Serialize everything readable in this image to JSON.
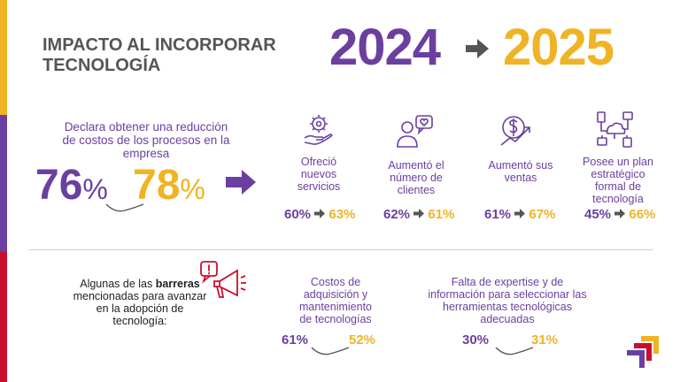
{
  "colors": {
    "purple": "#6b3fa0",
    "yellow": "#f0b323",
    "red": "#c8102e",
    "gray": "#555555"
  },
  "header": {
    "title_line1": "IMPACTO AL INCORPORAR",
    "title_line2": "TECNOLOGÍA",
    "year_from": "2024",
    "year_to": "2025"
  },
  "cost_reduction": {
    "text": "Declara obtener una reducción de costos de los procesos en la empresa",
    "value_2024": "76",
    "value_2025": "78",
    "unit": "%"
  },
  "impacts": [
    {
      "icon": "gear-hand-icon",
      "label": "Ofreció nuevos servicios",
      "from": "60%",
      "to": "63%"
    },
    {
      "icon": "person-heart-icon",
      "label": "Aumentó el número de clientes",
      "from": "62%",
      "to": "61%"
    },
    {
      "icon": "dollar-growth-icon",
      "label": "Aumentó sus ventas",
      "from": "61%",
      "to": "67%"
    },
    {
      "icon": "network-plan-icon",
      "label": "Posee un plan estratégico formal de tecnología",
      "from": "45%",
      "to": "66%"
    }
  ],
  "barriers": {
    "intro_before": "Algunas de las ",
    "intro_bold": "barreras",
    "intro_after": " mencionadas para avanzar en la adopción de tecnología:",
    "icon": "megaphone-alert-icon",
    "items": [
      {
        "label": "Costos de adquisición y mantenimiento de tecnologías",
        "from": "61%",
        "to": "52%"
      },
      {
        "label": "Falta de expertise y de información para seleccionar las herramientas tecnológicas adecuadas",
        "from": "30%",
        "to": "31%"
      }
    ]
  },
  "logo": {
    "icon": "brand-logo-icon"
  }
}
